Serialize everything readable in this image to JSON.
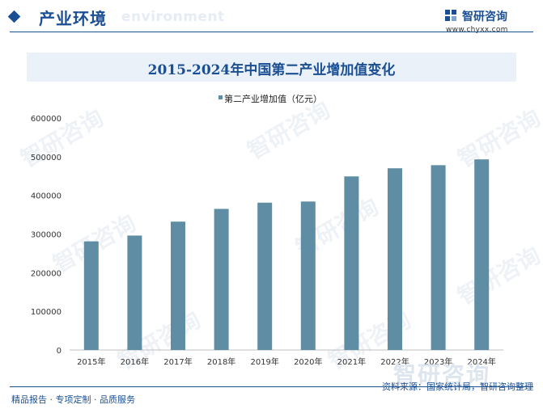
{
  "header": {
    "section_title": "产业环境",
    "section_subtitle": "environment",
    "brand_name": "智研咨询",
    "brand_url": "www.chyxx.com"
  },
  "chart_data": {
    "type": "bar",
    "title": "2015-2024年中国第二产业增加值变化",
    "categories": [
      "2015年",
      "2016年",
      "2017年",
      "2018年",
      "2019年",
      "2020年",
      "2021年",
      "2022年",
      "2023年",
      "2024年"
    ],
    "series": [
      {
        "name": "第二产业增加值（亿元）",
        "values": [
          281000,
          296000,
          332000,
          365000,
          381000,
          384000,
          449000,
          470000,
          478000,
          493000
        ]
      }
    ],
    "ylim": [
      0,
      600000
    ],
    "yticks": [
      "0",
      "100000",
      "200000",
      "300000",
      "400000",
      "500000",
      "600000"
    ],
    "bar_color": "#5f8ea4",
    "grid": false,
    "legend": "top-center"
  },
  "footer": {
    "left": "精品报告 · 专项定制 · 品质服务",
    "source": "资料来源：国家统计局，智研咨询整理"
  },
  "watermark": "智研咨询"
}
